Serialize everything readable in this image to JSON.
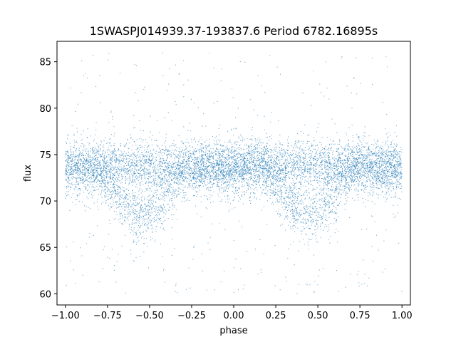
{
  "chart_data": {
    "type": "scatter",
    "title": "1SWASPJ014939.37-193837.6 Period 6782.16895s",
    "xlabel": "phase",
    "ylabel": "flux",
    "xlim": [
      -1.05,
      1.05
    ],
    "ylim": [
      58.8,
      87.2
    ],
    "xticks": [
      -1.0,
      -0.75,
      -0.5,
      -0.25,
      0.0,
      0.25,
      0.5,
      0.75,
      1.0
    ],
    "xtick_labels": [
      "−1.00",
      "−0.75",
      "−0.50",
      "−0.25",
      "0.00",
      "0.25",
      "0.50",
      "0.75",
      "1.00"
    ],
    "yticks": [
      60,
      65,
      70,
      75,
      80,
      85
    ],
    "ytick_labels": [
      "60",
      "65",
      "70",
      "75",
      "80",
      "85"
    ],
    "grid": false,
    "marker_color": "#1f77b4",
    "series": [
      {
        "phase_range": [
          -1.0,
          1.0
        ],
        "flux_range": [
          60.0,
          86.0
        ],
        "upper_band_flux": 73.8,
        "lower_dip_flux": 68.5,
        "dip_centers_phase": [
          -0.55,
          0.45
        ],
        "dense_core_flux_range": [
          71.0,
          76.0
        ]
      }
    ]
  }
}
